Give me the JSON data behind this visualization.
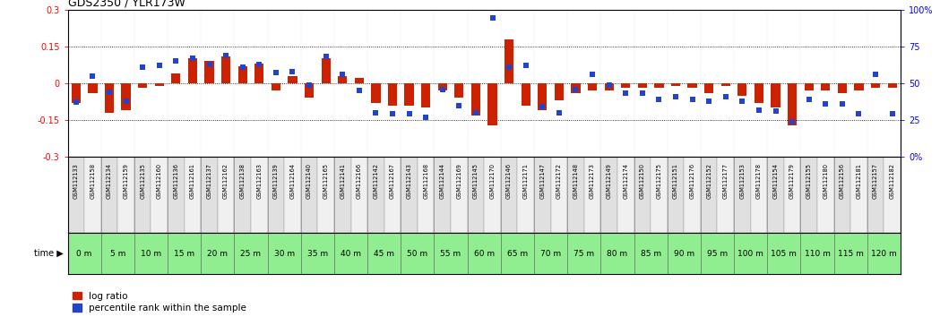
{
  "title": "GDS2350 / YLR173W",
  "samples": [
    "GSM112133",
    "GSM112158",
    "GSM112134",
    "GSM112159",
    "GSM112135",
    "GSM112160",
    "GSM112136",
    "GSM112161",
    "GSM112137",
    "GSM112162",
    "GSM112138",
    "GSM112163",
    "GSM112139",
    "GSM112164",
    "GSM112140",
    "GSM112165",
    "GSM112141",
    "GSM112166",
    "GSM112142",
    "GSM112167",
    "GSM112143",
    "GSM112168",
    "GSM112144",
    "GSM112169",
    "GSM112145",
    "GSM112170",
    "GSM112146",
    "GSM112171",
    "GSM112147",
    "GSM112172",
    "GSM112148",
    "GSM112173",
    "GSM112149",
    "GSM112174",
    "GSM112150",
    "GSM112175",
    "GSM112151",
    "GSM112176",
    "GSM112152",
    "GSM112177",
    "GSM112153",
    "GSM112178",
    "GSM112154",
    "GSM112179",
    "GSM112155",
    "GSM112180",
    "GSM112156",
    "GSM112181",
    "GSM112157",
    "GSM112182"
  ],
  "time_labels": [
    "0 m",
    "5 m",
    "10 m",
    "15 m",
    "20 m",
    "25 m",
    "30 m",
    "35 m",
    "40 m",
    "45 m",
    "50 m",
    "55 m",
    "60 m",
    "65 m",
    "70 m",
    "75 m",
    "80 m",
    "85 m",
    "90 m",
    "95 m",
    "100 m",
    "105 m",
    "110 m",
    "115 m",
    "120 m"
  ],
  "log_ratio": [
    -0.08,
    -0.04,
    -0.12,
    -0.11,
    -0.02,
    -0.01,
    0.04,
    0.1,
    0.09,
    0.11,
    0.07,
    0.08,
    -0.03,
    0.03,
    -0.06,
    0.1,
    0.03,
    0.02,
    -0.08,
    -0.09,
    -0.09,
    -0.1,
    -0.03,
    -0.06,
    -0.13,
    -0.17,
    0.18,
    -0.09,
    -0.11,
    -0.07,
    -0.04,
    -0.03,
    -0.03,
    -0.02,
    -0.02,
    -0.02,
    -0.01,
    -0.02,
    -0.04,
    -0.01,
    -0.05,
    -0.08,
    -0.1,
    -0.17,
    -0.03,
    -0.03,
    -0.04,
    -0.03,
    -0.02,
    -0.02
  ],
  "percentile": [
    37,
    55,
    44,
    38,
    61,
    62,
    65,
    67,
    63,
    69,
    61,
    63,
    57,
    58,
    49,
    68,
    56,
    45,
    30,
    29,
    29,
    27,
    46,
    35,
    30,
    94,
    61,
    62,
    34,
    30,
    46,
    56,
    49,
    43,
    43,
    39,
    41,
    39,
    38,
    41,
    38,
    32,
    31,
    24,
    39,
    36,
    36,
    29,
    56,
    29
  ],
  "ylim_left": [
    -0.3,
    0.3
  ],
  "ylim_right": [
    0,
    100
  ],
  "bar_color": "#cc2200",
  "dot_color": "#2244cc",
  "bg_color": "#ffffff",
  "time_bg": "#90ee90",
  "title_fontsize": 9,
  "tick_fontsize": 7,
  "sample_fontsize": 4.8,
  "time_fontsize": 6.5,
  "legend_fontsize": 7.5
}
